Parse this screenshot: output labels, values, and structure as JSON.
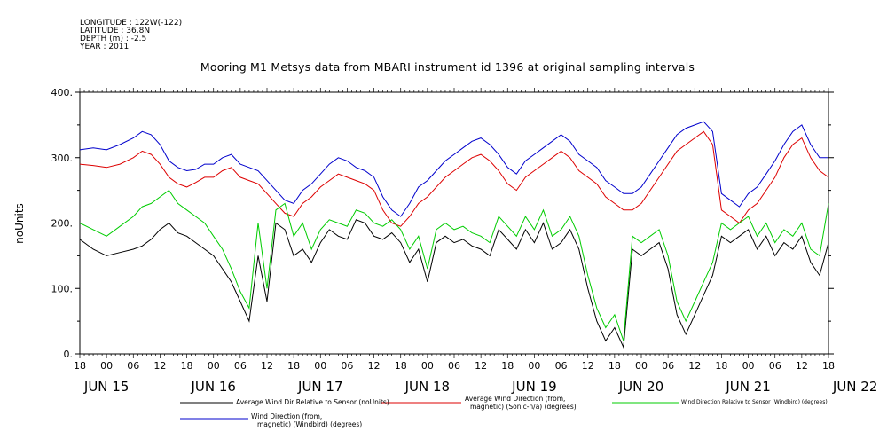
{
  "metadata": {
    "longitude": "LONGITUDE : 122W(-122)",
    "latitude": "LATITUDE : 36.8N",
    "depth": "DEPTH (m) : -2.5",
    "year": "YEAR : 2011"
  },
  "chart_data": {
    "type": "line",
    "title": "Mooring M1 Metsys data from MBARI instrument id 1396 at original sampling intervals",
    "ylabel": "noUnits",
    "xlabel": "",
    "ylim": [
      0,
      400
    ],
    "y_ticks": [
      "0.",
      "100.",
      "200.",
      "300.",
      "400."
    ],
    "x_unit": "hours since JUN 15 18:00, 2011",
    "xlim": [
      0,
      168
    ],
    "x_hour_ticks": [
      "18",
      "00",
      "06",
      "12",
      "18",
      "00",
      "06",
      "12",
      "18",
      "00",
      "06",
      "12",
      "18",
      "00",
      "06",
      "12",
      "18",
      "00",
      "06",
      "12",
      "18",
      "00",
      "06",
      "12",
      "18",
      "00",
      "06",
      "12",
      "18"
    ],
    "x_day_labels": [
      {
        "label": "JUN 15",
        "x": 6
      },
      {
        "label": "JUN 16",
        "x": 30
      },
      {
        "label": "JUN 17",
        "x": 54
      },
      {
        "label": "JUN 18",
        "x": 78
      },
      {
        "label": "JUN 19",
        "x": 102
      },
      {
        "label": "JUN 20",
        "x": 126
      },
      {
        "label": "JUN 21",
        "x": 150
      },
      {
        "label": "JUN 22",
        "x": 174
      }
    ],
    "grid": false,
    "legend_placement": "bottom",
    "series": [
      {
        "name": "Average Wind Dir Relative to Sensor (noUnits)",
        "color": "#000000",
        "x": [
          0,
          3,
          6,
          9,
          12,
          14,
          16,
          18,
          20,
          22,
          24,
          26,
          28,
          30,
          32,
          34,
          36,
          38,
          40,
          42,
          44,
          46,
          48,
          50,
          52,
          54,
          56,
          58,
          60,
          62,
          64,
          66,
          68,
          70,
          72,
          74,
          76,
          78,
          80,
          82,
          84,
          86,
          88,
          90,
          92,
          94,
          96,
          98,
          100,
          102,
          104,
          106,
          108,
          110,
          112,
          114,
          116,
          118,
          120,
          122,
          124,
          126,
          128,
          130,
          132,
          134,
          136,
          138,
          140,
          142,
          144,
          146,
          148,
          150,
          152,
          154,
          156,
          158,
          160,
          162,
          164,
          166,
          168
        ],
        "y": [
          175,
          160,
          150,
          155,
          160,
          165,
          175,
          190,
          200,
          185,
          180,
          170,
          160,
          150,
          130,
          110,
          80,
          50,
          150,
          80,
          200,
          190,
          150,
          160,
          140,
          170,
          190,
          180,
          175,
          205,
          200,
          180,
          175,
          185,
          170,
          140,
          160,
          110,
          170,
          180,
          170,
          175,
          165,
          160,
          150,
          190,
          175,
          160,
          190,
          170,
          200,
          160,
          170,
          190,
          160,
          100,
          50,
          20,
          40,
          10,
          160,
          150,
          160,
          170,
          130,
          60,
          30,
          60,
          90,
          120,
          180,
          170,
          180,
          190,
          160,
          180,
          150,
          170,
          160,
          180,
          140,
          120,
          170
        ]
      },
      {
        "name": "Average Wind Direction (from, magnetic) (Sonic-n/a) (degrees)",
        "color": "#dd0000",
        "x": [
          0,
          3,
          6,
          9,
          12,
          14,
          16,
          18,
          20,
          22,
          24,
          26,
          28,
          30,
          32,
          34,
          36,
          38,
          40,
          42,
          44,
          46,
          48,
          50,
          52,
          54,
          56,
          58,
          60,
          62,
          64,
          66,
          68,
          70,
          72,
          74,
          76,
          78,
          80,
          82,
          84,
          86,
          88,
          90,
          92,
          94,
          96,
          98,
          100,
          102,
          104,
          106,
          108,
          110,
          112,
          114,
          116,
          118,
          120,
          122,
          124,
          126,
          128,
          130,
          132,
          134,
          136,
          138,
          140,
          142,
          144,
          146,
          148,
          150,
          152,
          154,
          156,
          158,
          160,
          162,
          164,
          166,
          168
        ],
        "y": [
          290,
          288,
          285,
          290,
          300,
          310,
          305,
          290,
          270,
          260,
          255,
          262,
          270,
          270,
          280,
          285,
          270,
          265,
          260,
          245,
          230,
          215,
          210,
          230,
          240,
          255,
          265,
          275,
          270,
          265,
          260,
          250,
          220,
          200,
          195,
          210,
          230,
          240,
          255,
          270,
          280,
          290,
          300,
          305,
          295,
          280,
          260,
          250,
          270,
          280,
          290,
          300,
          310,
          300,
          280,
          270,
          260,
          240,
          230,
          220,
          220,
          230,
          250,
          270,
          290,
          310,
          320,
          330,
          340,
          320,
          220,
          210,
          200,
          220,
          230,
          250,
          270,
          300,
          320,
          330,
          300,
          280,
          270
        ]
      },
      {
        "name": "Wind Direction Relative to Sensor (Windbird) (degrees)",
        "color": "#00cc00",
        "x": [
          0,
          3,
          6,
          9,
          12,
          14,
          16,
          18,
          20,
          22,
          24,
          26,
          28,
          30,
          32,
          34,
          36,
          38,
          40,
          42,
          44,
          46,
          48,
          50,
          52,
          54,
          56,
          58,
          60,
          62,
          64,
          66,
          68,
          70,
          72,
          74,
          76,
          78,
          80,
          82,
          84,
          86,
          88,
          90,
          92,
          94,
          96,
          98,
          100,
          102,
          104,
          106,
          108,
          110,
          112,
          114,
          116,
          118,
          120,
          122,
          124,
          126,
          128,
          130,
          132,
          134,
          136,
          138,
          140,
          142,
          144,
          146,
          148,
          150,
          152,
          154,
          156,
          158,
          160,
          162,
          164,
          166,
          168
        ],
        "y": [
          200,
          190,
          180,
          195,
          210,
          225,
          230,
          240,
          250,
          230,
          220,
          210,
          200,
          180,
          160,
          130,
          95,
          70,
          200,
          100,
          220,
          230,
          180,
          200,
          160,
          190,
          205,
          200,
          195,
          220,
          215,
          200,
          195,
          205,
          190,
          160,
          180,
          130,
          190,
          200,
          190,
          195,
          185,
          180,
          170,
          210,
          195,
          180,
          210,
          190,
          220,
          180,
          190,
          210,
          180,
          120,
          70,
          40,
          60,
          20,
          180,
          170,
          180,
          190,
          150,
          80,
          50,
          80,
          110,
          140,
          200,
          190,
          200,
          210,
          180,
          200,
          170,
          190,
          180,
          200,
          160,
          150,
          230
        ]
      },
      {
        "name": "Wind Direction (from, magnetic) (Windbird) (degrees)",
        "color": "#0000cc",
        "x": [
          0,
          3,
          6,
          9,
          12,
          14,
          16,
          18,
          20,
          22,
          24,
          26,
          28,
          30,
          32,
          34,
          36,
          38,
          40,
          42,
          44,
          46,
          48,
          50,
          52,
          54,
          56,
          58,
          60,
          62,
          64,
          66,
          68,
          70,
          72,
          74,
          76,
          78,
          80,
          82,
          84,
          86,
          88,
          90,
          92,
          94,
          96,
          98,
          100,
          102,
          104,
          106,
          108,
          110,
          112,
          114,
          116,
          118,
          120,
          122,
          124,
          126,
          128,
          130,
          132,
          134,
          136,
          138,
          140,
          142,
          144,
          146,
          148,
          150,
          152,
          154,
          156,
          158,
          160,
          162,
          164,
          166,
          168
        ],
        "y": [
          312,
          315,
          312,
          320,
          330,
          340,
          335,
          320,
          295,
          285,
          280,
          282,
          290,
          290,
          300,
          305,
          290,
          285,
          280,
          265,
          250,
          235,
          230,
          250,
          260,
          275,
          290,
          300,
          295,
          285,
          280,
          270,
          240,
          220,
          210,
          230,
          255,
          265,
          280,
          295,
          305,
          315,
          325,
          330,
          320,
          305,
          285,
          275,
          295,
          305,
          315,
          325,
          335,
          325,
          305,
          295,
          285,
          265,
          255,
          245,
          245,
          255,
          275,
          295,
          315,
          335,
          345,
          350,
          355,
          340,
          245,
          235,
          225,
          245,
          255,
          275,
          295,
          320,
          340,
          350,
          320,
          300,
          300
        ]
      }
    ]
  },
  "legend": {
    "black": "Average Wind Dir Relative to Sensor (noUnits)",
    "red_line1": "Average Wind Direction (from,",
    "red_line2": "magnetic) (Sonic-n/a) (degrees)",
    "green": "Wind Direction Relative to Sensor (Windbird) (degrees)",
    "blue_line1": "Wind Direction (from,",
    "blue_line2": "magnetic) (Windbird) (degrees)"
  }
}
